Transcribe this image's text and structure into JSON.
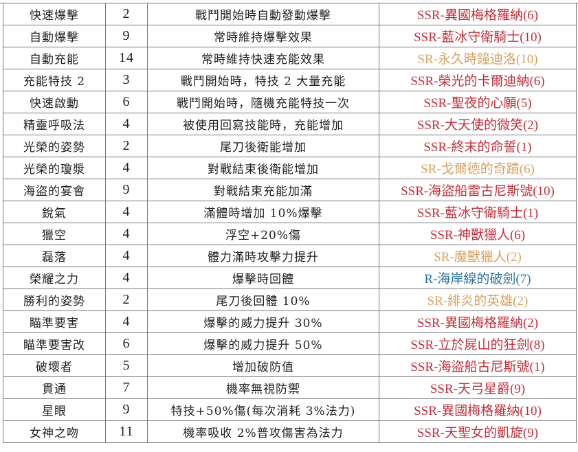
{
  "colors": {
    "SSR": "#c0303c",
    "SR": "#d7a261",
    "R": "#2f73a6"
  },
  "rows": [
    {
      "name": "快速爆擊",
      "cost": "2",
      "effect": "戰鬥開始時自動發動爆擊",
      "source": "SSR-異國梅格羅納(6)",
      "rarity": "SSR"
    },
    {
      "name": "自動爆擊",
      "cost": "9",
      "effect": "常時維持爆擊效果",
      "source": "SSR-藍冰守衛騎士(10)",
      "rarity": "SSR"
    },
    {
      "name": "自動充能",
      "cost": "14",
      "effect": "常時維持快速充能效果",
      "source": "SR-永久時鐘迪洛(10)",
      "rarity": "SR"
    },
    {
      "name": "充能特技 2",
      "cost": "3",
      "effect": "戰鬥開始時，特技 2 大量充能",
      "source": "SSR-榮光的卡爾迪納(6)",
      "rarity": "SSR"
    },
    {
      "name": "快速啟動",
      "cost": "6",
      "effect": "戰鬥開始時，隨機充能特技一次",
      "source": "SSR-聖夜的心願(5)",
      "rarity": "SSR"
    },
    {
      "name": "精靈呼吸法",
      "cost": "4",
      "effect": "被使用回寫技能時，充能增加",
      "source": "SSR-大天使的微笑(2)",
      "rarity": "SSR"
    },
    {
      "name": "光榮的姿勢",
      "cost": "2",
      "effect": "尾刀後衛能增加",
      "source": "SSR-終末的命誓(1)",
      "rarity": "SSR"
    },
    {
      "name": "光榮的瓊漿",
      "cost": "4",
      "effect": "對戰結束後衛能增加",
      "source": "SR-戈爾德的奇蹟(6)",
      "rarity": "SR"
    },
    {
      "name": "海盜的宴會",
      "cost": "9",
      "effect": "對戰結束充能加滿",
      "source": "SSR-海盜船雷古尼斯號(10)",
      "rarity": "SSR"
    },
    {
      "name": "銳氣",
      "cost": "4",
      "effect": "滿體時增加 10%爆擊",
      "source": "SSR-藍冰守衛騎士(1)",
      "rarity": "SSR"
    },
    {
      "name": "獵空",
      "cost": "4",
      "effect": "浮空+20%傷",
      "source": "SSR-神獸獵人(6)",
      "rarity": "SSR"
    },
    {
      "name": "磊落",
      "cost": "4",
      "effect": "體力滿時攻擊力提升",
      "source": "SR-魔獸獵人(2)",
      "rarity": "SR"
    },
    {
      "name": "榮耀之力",
      "cost": "4",
      "effect": "爆擊時回體",
      "source": "R-海岸線的破劍(7)",
      "rarity": "R"
    },
    {
      "name": "勝利的姿勢",
      "cost": "2",
      "effect": "尾刀後回體 10%",
      "source": "SR-緋炎的英雄(2)",
      "rarity": "SR"
    },
    {
      "name": "瞄準要害",
      "cost": "4",
      "effect": "爆擊的威力提升 30%",
      "source": "SSR-異國梅格羅納(2)",
      "rarity": "SSR"
    },
    {
      "name": "瞄準要害改",
      "cost": "6",
      "effect": "爆擊的威力提升 50%",
      "source": "SSR-立於屍山的狂劍(8)",
      "rarity": "SSR"
    },
    {
      "name": "破壞者",
      "cost": "5",
      "effect": "增加破防值",
      "source": "SSR-海盜船古尼斯號(1)",
      "rarity": "SSR"
    },
    {
      "name": "貫通",
      "cost": "7",
      "effect": "機率無視防禦",
      "source": "SSR-天弓星爵(9)",
      "rarity": "SSR"
    },
    {
      "name": "星眼",
      "cost": "9",
      "effect": "特技+50%傷(每次消耗 3%法力)",
      "source": "SSR-異國梅格羅納(10)",
      "rarity": "SSR"
    },
    {
      "name": "女神之吻",
      "cost": "11",
      "effect": "機率吸收 2%普攻傷害為法力",
      "source": "SSR-天聖女的凱旋(9)",
      "rarity": "SSR"
    }
  ]
}
